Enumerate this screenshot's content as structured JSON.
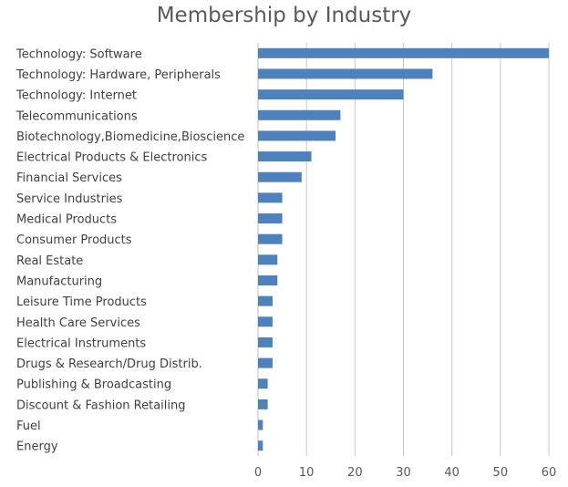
{
  "chart_data": {
    "type": "bar",
    "orientation": "horizontal",
    "title": "Membership by Industry",
    "xlabel": "",
    "ylabel": "",
    "xlim": [
      0,
      60
    ],
    "x_ticks": [
      0,
      10,
      20,
      30,
      40,
      50,
      60
    ],
    "grid": "vertical",
    "legend": "none",
    "bar_color": "#4F81BD",
    "categories": [
      "Technology: Software",
      "Technology: Hardware, Peripherals",
      "Technology: Internet",
      "Telecommunications",
      "Biotechnology,Biomedicine,Bioscience",
      "Electrical Products & Electronics",
      "Financial Services",
      "Service Industries",
      "Medical Products",
      "Consumer Products",
      "Real Estate",
      "Manufacturing",
      "Leisure Time Products",
      "Health Care Services",
      "Electrical Instruments",
      "Drugs & Research/Drug Distrib.",
      "Publishing & Broadcasting",
      "Discount & Fashion Retailing",
      "Fuel",
      "Energy"
    ],
    "values": [
      60,
      36,
      30,
      17,
      16,
      11,
      9,
      5,
      5,
      5,
      4,
      4,
      3,
      3,
      3,
      3,
      2,
      2,
      1,
      1
    ]
  }
}
